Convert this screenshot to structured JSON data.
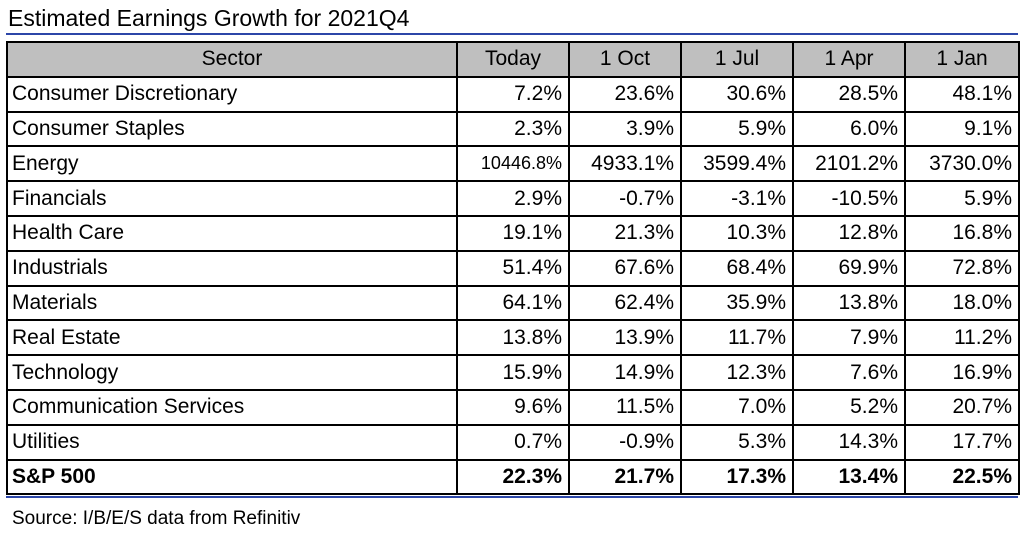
{
  "title": "Estimated Earnings Growth for 2021Q4",
  "columns": [
    "Sector",
    "Today",
    "1 Oct",
    "1 Jul",
    "1 Apr",
    "1 Jan"
  ],
  "rows": [
    {
      "sector": "Consumer Discretionary",
      "values": [
        "7.2%",
        "23.6%",
        "30.6%",
        "28.5%",
        "48.1%"
      ]
    },
    {
      "sector": "Consumer Staples",
      "values": [
        "2.3%",
        "3.9%",
        "5.9%",
        "6.0%",
        "9.1%"
      ]
    },
    {
      "sector": "Energy",
      "values": [
        "10446.8%",
        "4933.1%",
        "3599.4%",
        "2101.2%",
        "3730.0%"
      ]
    },
    {
      "sector": "Financials",
      "values": [
        "2.9%",
        "-0.7%",
        "-3.1%",
        "-10.5%",
        "5.9%"
      ]
    },
    {
      "sector": "Health Care",
      "values": [
        "19.1%",
        "21.3%",
        "10.3%",
        "12.8%",
        "16.8%"
      ]
    },
    {
      "sector": "Industrials",
      "values": [
        "51.4%",
        "67.6%",
        "68.4%",
        "69.9%",
        "72.8%"
      ]
    },
    {
      "sector": "Materials",
      "values": [
        "64.1%",
        "62.4%",
        "35.9%",
        "13.8%",
        "18.0%"
      ]
    },
    {
      "sector": "Real Estate",
      "values": [
        "13.8%",
        "13.9%",
        "11.7%",
        "7.9%",
        "11.2%"
      ]
    },
    {
      "sector": "Technology",
      "values": [
        "15.9%",
        "14.9%",
        "12.3%",
        "7.6%",
        "16.9%"
      ]
    },
    {
      "sector": "Communication Services",
      "values": [
        "9.6%",
        "11.5%",
        "7.0%",
        "5.2%",
        "20.7%"
      ]
    },
    {
      "sector": "Utilities",
      "values": [
        "0.7%",
        "-0.9%",
        "5.3%",
        "14.3%",
        "17.7%"
      ]
    }
  ],
  "total": {
    "sector": "S&P 500",
    "values": [
      "22.3%",
      "21.7%",
      "17.3%",
      "13.4%",
      "22.5%"
    ]
  },
  "source": "Source: I/B/E/S data from Refinitiv",
  "colors": {
    "header_bg": "#bfbfbf",
    "rule": "#2c46a8",
    "border": "#000000"
  }
}
